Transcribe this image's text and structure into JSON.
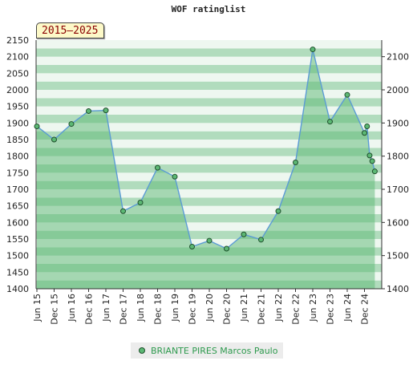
{
  "chart_data": {
    "type": "area",
    "title": "WOF ratinglist",
    "period_label": "2015–2025",
    "ylim": [
      1400,
      2150
    ],
    "y_ticks_left": [
      1400,
      1450,
      1500,
      1550,
      1600,
      1650,
      1700,
      1750,
      1800,
      1850,
      1900,
      1950,
      2000,
      2050,
      2100,
      2150
    ],
    "y_ticks_right": [
      1400,
      1500,
      1600,
      1700,
      1800,
      1900,
      2000,
      2100
    ],
    "x_tick_labels": [
      "Jun 15",
      "Dec 15",
      "Jun 16",
      "Dec 16",
      "Jun 17",
      "Dec 17",
      "Jun 18",
      "Dec 18",
      "Jun 19",
      "Dec 19",
      "Jun 20",
      "Dec 20",
      "Jun 21",
      "Dec 21",
      "Jun 22",
      "Dec 22",
      "Jun 23",
      "Dec 23",
      "Jun 24",
      "Dec 24"
    ],
    "grid": true,
    "legend_position": "bottom",
    "colors": {
      "line": "#5b9bd5",
      "marker": "#5cb874",
      "marker_edge": "#1f4f2c",
      "fill": "#5cb874",
      "band_dark": "#a8d8b6",
      "band_light": "#ecf6ee"
    },
    "series": [
      {
        "name": "BRIANTE PIRES Marcos Paulo",
        "x": [
          0,
          1,
          2,
          3,
          4,
          5,
          6,
          7,
          8,
          9,
          10,
          11,
          12,
          13,
          14,
          15,
          16,
          17,
          18,
          19,
          19.15,
          19.3,
          19.45,
          19.6
        ],
        "values": [
          1890,
          1850,
          1897,
          1936,
          1938,
          1634,
          1660,
          1765,
          1738,
          1527,
          1545,
          1521,
          1564,
          1548,
          1634,
          1781,
          2122,
          1904,
          1985,
          1870,
          1890,
          1802,
          1785,
          1754
        ]
      }
    ]
  }
}
